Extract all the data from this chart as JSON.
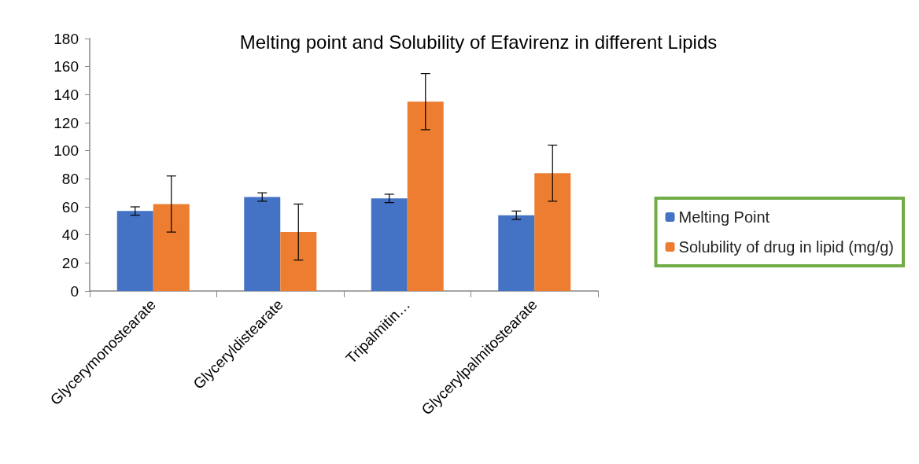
{
  "chart_data": {
    "type": "bar",
    "title": "Melting point and Solubility of Efavirenz in different Lipids",
    "categories": [
      "Glycerymonostearate",
      "Glyceryldistearate",
      "Tripalmitin…",
      "Glycerylpalmitostearate"
    ],
    "series": [
      {
        "name": "Melting Point",
        "color": "#4472c4",
        "values": [
          57,
          67,
          66,
          54
        ],
        "errors": [
          3,
          3,
          3,
          3
        ]
      },
      {
        "name": "Solubility of drug in lipid (mg/g)",
        "color": "#ed7d31",
        "values": [
          62,
          42,
          135,
          84
        ],
        "errors": [
          20,
          20,
          20,
          20
        ]
      }
    ],
    "ylim": [
      0,
      180
    ],
    "yticks": [
      0,
      20,
      40,
      60,
      80,
      100,
      120,
      140,
      160,
      180
    ],
    "grid": false,
    "legend": "right"
  }
}
